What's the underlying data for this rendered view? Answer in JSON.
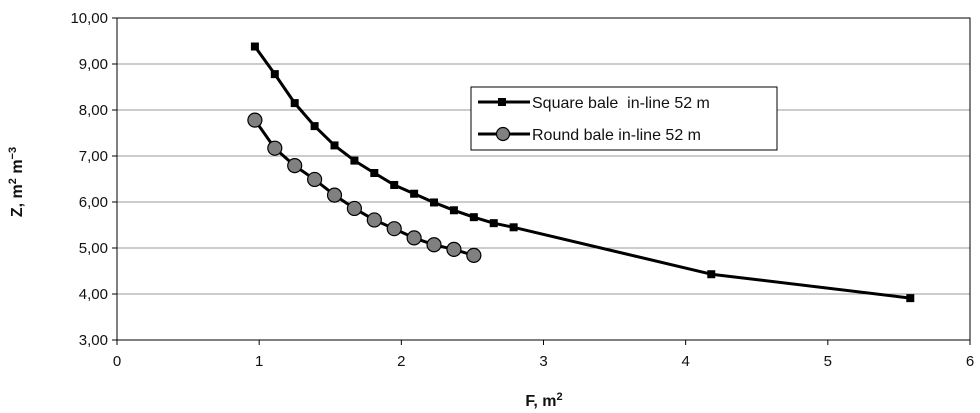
{
  "chart_data": {
    "type": "line",
    "xlabel": "F, m",
    "xlabel_sup": "2",
    "ylabel": "Z, m",
    "ylabel_sup1": "2",
    "ylabel_mid": " m",
    "ylabel_sup2": "−3",
    "xlim": [
      0,
      6
    ],
    "ylim": [
      3,
      10
    ],
    "x_ticks": [
      0,
      1,
      2,
      3,
      4,
      5,
      6
    ],
    "x_tick_labels": [
      "0",
      "1",
      "2",
      "3",
      "4",
      "5",
      "6"
    ],
    "y_ticks": [
      3,
      4,
      5,
      6,
      7,
      8,
      9,
      10
    ],
    "y_tick_labels": [
      "3,00",
      "4,00",
      "5,00",
      "6,00",
      "7,00",
      "8,00",
      "9,00",
      "10,00"
    ],
    "grid": "horizontal",
    "legend_position": "upper-right",
    "series": [
      {
        "name": "Square bale  in-line 52 m",
        "marker": "square",
        "color": "#000000",
        "x": [
          0.97,
          1.11,
          1.25,
          1.39,
          1.53,
          1.67,
          1.81,
          1.95,
          2.09,
          2.23,
          2.37,
          2.51,
          2.65,
          2.79,
          4.18,
          5.58
        ],
        "y": [
          9.38,
          8.78,
          8.15,
          7.65,
          7.23,
          6.9,
          6.63,
          6.37,
          6.18,
          5.99,
          5.82,
          5.67,
          5.54,
          5.45,
          4.43,
          3.91
        ]
      },
      {
        "name": "Round bale in-line 52 m",
        "marker": "circle",
        "color": "#808080",
        "x": [
          0.97,
          1.11,
          1.25,
          1.39,
          1.53,
          1.67,
          1.81,
          1.95,
          2.09,
          2.23,
          2.37,
          2.51
        ],
        "y": [
          7.78,
          7.17,
          6.79,
          6.49,
          6.15,
          5.86,
          5.61,
          5.42,
          5.22,
          5.07,
          4.97,
          4.84
        ]
      }
    ]
  }
}
